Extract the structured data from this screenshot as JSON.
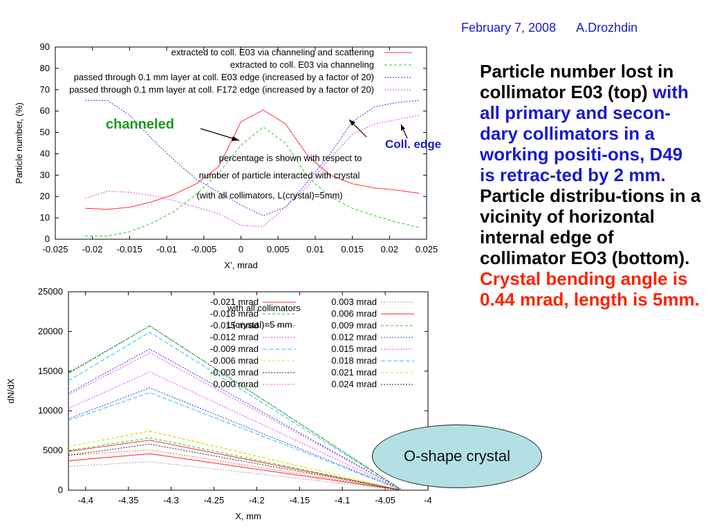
{
  "header": {
    "date": "February 7, 2008",
    "author": "A.Drozhdin"
  },
  "text": {
    "p1": "Particle number lost in collimator E03 (top) ",
    "p2": "with all primary and secon-dary collimators in a working positi-ons, D49 is retrac-ted by 2 mm.",
    "p3": " Particle distribu-tions in a vicinity of horizontal internal edge of collimator EO3 (bottom). ",
    "p4": "Crystal bending angle is 0.44 mrad, length is 5mm."
  },
  "o_shape": {
    "label": "O-shape crystal"
  },
  "chart_data": [
    {
      "type": "line",
      "xlabel": "X’, mrad",
      "ylabel": "Particle number, (%)",
      "xlim": [
        -0.025,
        0.025
      ],
      "ylim": [
        0,
        90
      ],
      "xticks": [
        "-0.025",
        "-0.02",
        "-0.015",
        "-0.01",
        "-0.005",
        "0",
        "0.005",
        "0.01",
        "0.015",
        "0.02",
        "0.025"
      ],
      "yticks": [
        "0",
        "10",
        "20",
        "30",
        "40",
        "50",
        "60",
        "70",
        "80",
        "90"
      ],
      "x": [
        -0.021,
        -0.018,
        -0.015,
        -0.012,
        -0.009,
        -0.006,
        -0.003,
        0,
        0.003,
        0.006,
        0.009,
        0.012,
        0.015,
        0.018,
        0.021,
        0.024
      ],
      "series": [
        {
          "name": "extracted to coll. E03 via channeling and scattering",
          "color": "#ff3030",
          "dash": "",
          "values": [
            14.5,
            14,
            15,
            17.5,
            21,
            26,
            34,
            55,
            60.5,
            54,
            39,
            30,
            26,
            24,
            23,
            21.5
          ]
        },
        {
          "name": "extracted to coll. E03 via channeling",
          "color": "#22cc22",
          "dash": "4,3",
          "values": [
            1.5,
            1.5,
            3.5,
            7.5,
            13,
            21,
            31,
            44,
            52.5,
            45,
            29,
            20,
            14.5,
            11,
            8,
            5.5
          ]
        },
        {
          "name": "passed through 0.1 mm layer at coll. E03 edge (increased by a factor of 20)",
          "color": "#3030dd",
          "dash": "2,2",
          "values": [
            65,
            65,
            58,
            47,
            37,
            28,
            22,
            16,
            11,
            15,
            27,
            40,
            55,
            62,
            64,
            65
          ]
        },
        {
          "name": "passed through 0.1 mm layer at coll. F172 edge (increased by a factor of 20)",
          "color": "#e040e0",
          "dash": "2,2",
          "values": [
            19,
            22.5,
            22,
            20.5,
            18,
            15,
            12,
            6.5,
            6,
            15,
            25,
            38,
            49,
            54,
            56,
            58
          ]
        }
      ],
      "annotations": [
        "channeled",
        "Coll. edge",
        "percentage is shown with respect to",
        "number of particle interacted with crystal",
        "(with all collimators, L(crystal)=5mm)"
      ]
    },
    {
      "type": "line",
      "xlabel": "X, mm",
      "ylabel": "dN/dX",
      "xlim": [
        -4.42,
        -4.0
      ],
      "ylim": [
        0,
        25000
      ],
      "xticks": [
        "-4.4",
        "-4.35",
        "-4.3",
        "-4.25",
        "-4.2",
        "-4.15",
        "-4.1",
        "-4.05",
        "-4"
      ],
      "yticks": [
        "0",
        "5000",
        "10000",
        "15000",
        "20000",
        "25000"
      ],
      "x": [
        -4.42,
        -4.325,
        -4.03
      ],
      "annotations": [
        "with all collimators",
        "L(crystal)=5 mm"
      ],
      "series": [
        {
          "name": "-0.021 mrad",
          "color": "#ff3030",
          "dash": "",
          "values": [
            4900,
            6300,
            0
          ]
        },
        {
          "name": "-0.018 mrad",
          "color": "#22cc22",
          "dash": "4,3",
          "values": [
            5000,
            6600,
            0
          ]
        },
        {
          "name": "-0.015 mrad",
          "color": "#3030dd",
          "dash": "2,2",
          "values": [
            9000,
            12900,
            0
          ]
        },
        {
          "name": "-0.012 mrad",
          "color": "#e040e0",
          "dash": "2,2",
          "values": [
            10300,
            14900,
            0
          ]
        },
        {
          "name": "-0.009 mrad",
          "color": "#20c8e8",
          "dash": "6,3",
          "values": [
            13800,
            19900,
            0
          ]
        },
        {
          "name": "-0.006 mrad",
          "color": "#e8e030",
          "dash": "4,3",
          "values": [
            5500,
            7500,
            0
          ]
        },
        {
          "name": "-0.003 mrad",
          "color": "#202020",
          "dash": "2,2",
          "values": [
            14800,
            20700,
            0
          ]
        },
        {
          "name": "0.000 mrad",
          "color": "#ff6040",
          "dash": "2,2",
          "values": [
            4400,
            5100,
            0
          ]
        },
        {
          "name": "0.003 mrad",
          "color": "#a0a0a0",
          "dash": "2,2",
          "values": [
            3000,
            3600,
            0
          ]
        },
        {
          "name": "0.006 mrad",
          "color": "#ff2020",
          "dash": "",
          "values": [
            3700,
            4600,
            0
          ]
        },
        {
          "name": "0.009 mrad",
          "color": "#22cc22",
          "dash": "4,3",
          "values": [
            14700,
            20700,
            0
          ]
        },
        {
          "name": "0.012 mrad",
          "color": "#3030dd",
          "dash": "2,2",
          "values": [
            12200,
            17800,
            0
          ]
        },
        {
          "name": "0.015 mrad",
          "color": "#e040e0",
          "dash": "2,2",
          "values": [
            12000,
            17300,
            0
          ]
        },
        {
          "name": "0.018 mrad",
          "color": "#20c8e8",
          "dash": "6,3",
          "values": [
            8800,
            12300,
            0
          ]
        },
        {
          "name": "0.021 mrad",
          "color": "#e8e030",
          "dash": "4,3",
          "values": [
            5500,
            7400,
            0
          ]
        },
        {
          "name": "0.024 mrad",
          "color": "#202020",
          "dash": "2,2",
          "values": [
            4400,
            5800,
            0
          ]
        }
      ]
    }
  ]
}
